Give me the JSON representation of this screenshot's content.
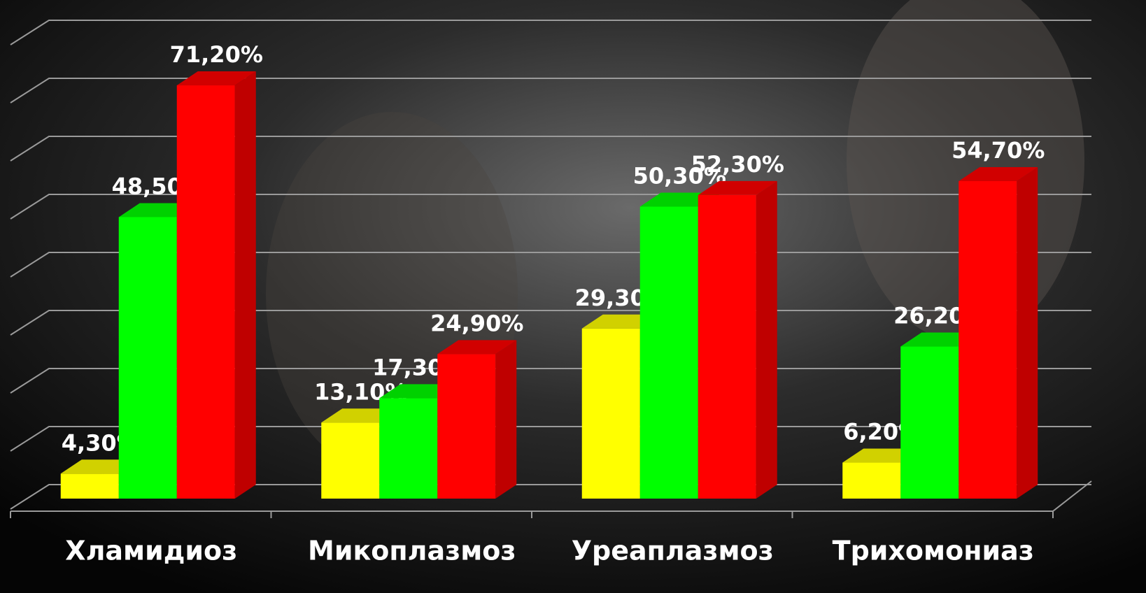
{
  "chart_data": {
    "type": "bar3d",
    "categories": [
      "Хламидиоз",
      "Микоплазмоз",
      "Уреаплазмоз",
      "Трихомониаз"
    ],
    "series": [
      {
        "color": "#ffff00",
        "values": [
          4.3,
          13.1,
          29.3,
          6.2
        ],
        "value_labels": [
          "4,30%",
          "13,10%",
          "29,30%",
          "6,20%"
        ]
      },
      {
        "color": "#00ff00",
        "values": [
          48.5,
          17.3,
          50.3,
          26.2
        ],
        "value_labels": [
          "48,50%",
          "17,30%",
          "50,30%",
          "26,20%"
        ]
      },
      {
        "color": "#ff0000",
        "values": [
          71.2,
          24.9,
          52.3,
          54.7
        ],
        "value_labels": [
          "71,20%",
          "24,90%",
          "52,30%",
          "54,70%"
        ]
      }
    ],
    "ylim": [
      0,
      80
    ],
    "yticks": [
      0,
      10,
      20,
      30,
      40,
      50,
      60,
      70,
      80
    ],
    "grid": true
  }
}
